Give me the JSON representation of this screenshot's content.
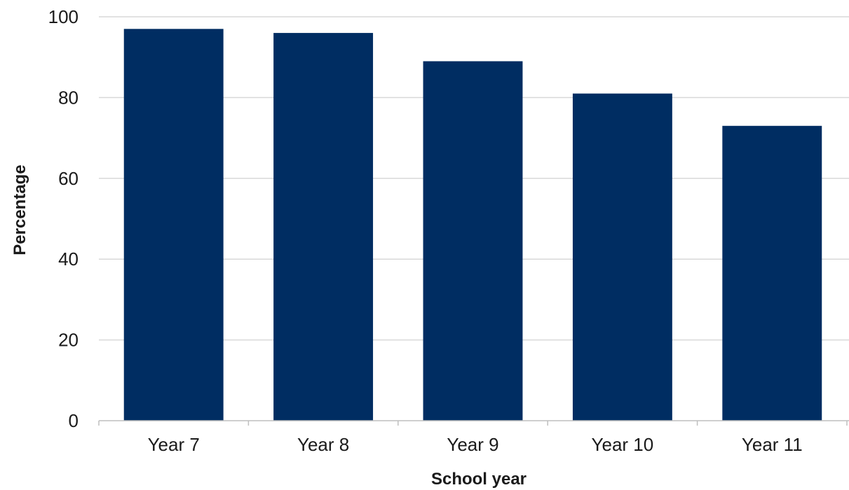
{
  "chart_data": {
    "type": "bar",
    "categories": [
      "Year 7",
      "Year 8",
      "Year 9",
      "Year 10",
      "Year 11"
    ],
    "values": [
      97,
      96,
      89,
      81,
      73
    ],
    "title": "",
    "xlabel": "School year",
    "ylabel": "Percentage",
    "ylim": [
      0,
      100
    ],
    "yticks": [
      0,
      20,
      40,
      60,
      80,
      100
    ],
    "grid": true,
    "legend": "none",
    "colors": {
      "bar": "#002D62",
      "grid": "#d9d9d9",
      "axis": "#bfbfbf"
    }
  }
}
